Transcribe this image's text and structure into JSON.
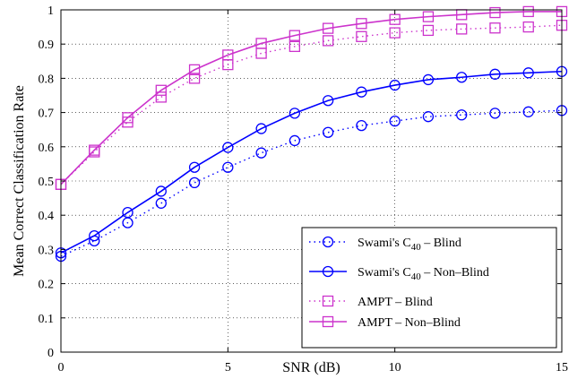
{
  "chart_data": {
    "type": "line",
    "title": "",
    "xlabel": "SNR (dB)",
    "ylabel": "Mean Correct Classification Rate",
    "xlim": [
      0,
      15
    ],
    "ylim": [
      0,
      1
    ],
    "x_ticks": [
      "0",
      "5",
      "10",
      "15"
    ],
    "y_ticks": [
      "0",
      "0.1",
      "0.2",
      "0.3",
      "0.4",
      "0.5",
      "0.6",
      "0.7",
      "0.8",
      "0.9",
      "1"
    ],
    "grid": true,
    "legend_position": "bottom-right",
    "x": [
      0,
      1,
      2,
      3,
      4,
      5,
      6,
      7,
      8,
      9,
      10,
      11,
      12,
      13,
      14,
      15
    ],
    "series": [
      {
        "name_main": "Swami's C",
        "name_sub": "40",
        "name_tail": " – Blind",
        "color": "#0000ff",
        "line": "dotted",
        "marker": "circle",
        "values": [
          0.28,
          0.325,
          0.378,
          0.435,
          0.495,
          0.54,
          0.582,
          0.618,
          0.642,
          0.662,
          0.675,
          0.688,
          0.693,
          0.698,
          0.702,
          0.706
        ]
      },
      {
        "name_main": "Swami's C",
        "name_sub": "40",
        "name_tail": " – Non–Blind",
        "color": "#0000ff",
        "line": "solid",
        "marker": "circle",
        "values": [
          0.29,
          0.34,
          0.408,
          0.47,
          0.54,
          0.598,
          0.653,
          0.698,
          0.735,
          0.76,
          0.78,
          0.796,
          0.803,
          0.812,
          0.816,
          0.82
        ]
      },
      {
        "name_main": "AMPT – Blind",
        "name_sub": "",
        "name_tail": "",
        "color": "#cc33cc",
        "line": "dotted",
        "marker": "square",
        "values": [
          0.49,
          0.585,
          0.672,
          0.745,
          0.8,
          0.84,
          0.873,
          0.893,
          0.91,
          0.922,
          0.933,
          0.94,
          0.944,
          0.947,
          0.95,
          0.955
        ]
      },
      {
        "name_main": "AMPT – Non–Blind",
        "name_sub": "",
        "name_tail": "",
        "color": "#cc33cc",
        "line": "solid",
        "marker": "square",
        "values": [
          0.49,
          0.59,
          0.685,
          0.765,
          0.825,
          0.868,
          0.902,
          0.925,
          0.946,
          0.96,
          0.972,
          0.98,
          0.986,
          0.992,
          0.995,
          0.995
        ]
      }
    ]
  }
}
